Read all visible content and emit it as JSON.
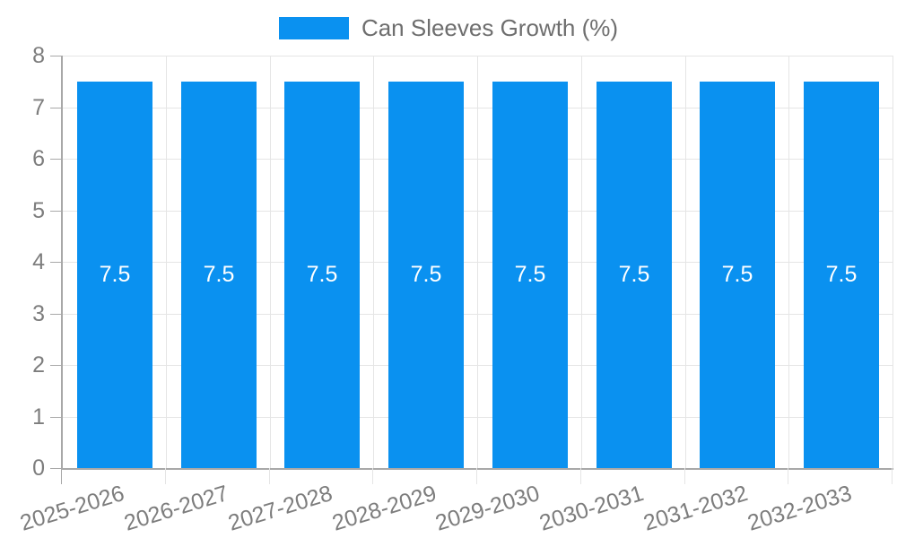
{
  "chart_data": {
    "type": "bar",
    "title": "",
    "legend": {
      "label": "Can Sleeves Growth (%)",
      "position": "top"
    },
    "categories": [
      "2025-2026",
      "2026-2027",
      "2027-2028",
      "2028-2029",
      "2029-2030",
      "2030-2031",
      "2031-2032",
      "2032-2033"
    ],
    "values": [
      7.5,
      7.5,
      7.5,
      7.5,
      7.5,
      7.5,
      7.5,
      7.5
    ],
    "bar_value_labels": [
      "7.5",
      "7.5",
      "7.5",
      "7.5",
      "7.5",
      "7.5",
      "7.5",
      "7.5"
    ],
    "xlabel": "",
    "ylabel": "",
    "ylim": [
      0,
      8
    ],
    "ytick_step": 1,
    "ytick_labels": [
      "0",
      "1",
      "2",
      "3",
      "4",
      "5",
      "6",
      "7",
      "8"
    ],
    "grid": true,
    "legend_interactive": true,
    "colors": {
      "bar": "#0a91f0",
      "axis": "#a8a8a8",
      "grid": "#e5e5e5",
      "tick_label": "#7d7d7d",
      "legend_text": "#6e6e6e",
      "bar_label": "#ffffff",
      "background": "#ffffff"
    }
  }
}
